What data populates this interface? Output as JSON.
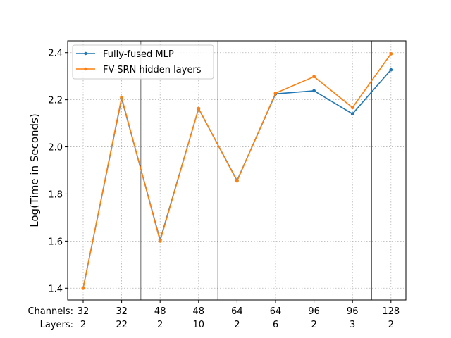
{
  "chart_data": {
    "type": "line",
    "x_categories": [
      {
        "channels": "32",
        "layers": "2"
      },
      {
        "channels": "32",
        "layers": "22"
      },
      {
        "channels": "48",
        "layers": "2"
      },
      {
        "channels": "48",
        "layers": "10"
      },
      {
        "channels": "64",
        "layers": "2"
      },
      {
        "channels": "64",
        "layers": "6"
      },
      {
        "channels": "96",
        "layers": "2"
      },
      {
        "channels": "96",
        "layers": "3"
      },
      {
        "channels": "128",
        "layers": "2"
      }
    ],
    "x_row_labels": {
      "channels": "Channels:",
      "layers": "Layers:"
    },
    "ylabel": "Log(Time in Seconds)",
    "ylim": [
      1.35,
      2.45
    ],
    "yticks": [
      "1.4",
      "1.6",
      "1.8",
      "2.0",
      "2.2",
      "2.4"
    ],
    "grid": true,
    "legend_position": "top-left",
    "group_separators_after_index": [
      2,
      4,
      6,
      8
    ],
    "series": [
      {
        "name": "Fully-fused MLP",
        "color": "#1f77b4",
        "values": [
          1.4,
          2.205,
          1.605,
          2.162,
          1.857,
          2.225,
          2.238,
          2.14,
          2.327
        ]
      },
      {
        "name": "FV-SRN hidden layers",
        "color": "#ff7f0e",
        "values": [
          1.4,
          2.21,
          1.6,
          2.163,
          1.855,
          2.228,
          2.298,
          2.167,
          2.395
        ]
      }
    ]
  }
}
